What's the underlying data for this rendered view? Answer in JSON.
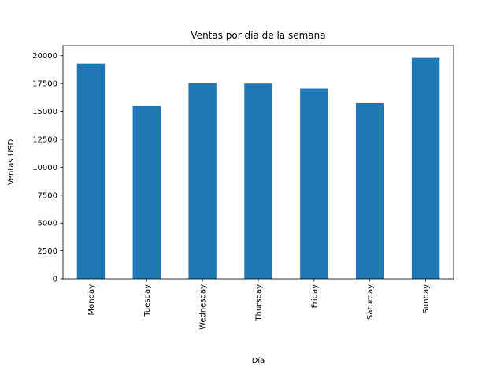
{
  "chart_data": {
    "type": "bar",
    "title": "Ventas por día de la semana",
    "xlabel": "Día",
    "ylabel": "Ventas USD",
    "categories": [
      "Monday",
      "Tuesday",
      "Wednesday",
      "Thursday",
      "Friday",
      "Saturday",
      "Sunday"
    ],
    "values": [
      19300,
      15500,
      17550,
      17500,
      17050,
      15750,
      19800
    ],
    "ylim": [
      0,
      20900
    ],
    "yticks": [
      "0",
      "2500",
      "5000",
      "7500",
      "10000",
      "12500",
      "15000",
      "17500",
      "20000"
    ],
    "ytick_values": [
      0,
      2500,
      5000,
      7500,
      10000,
      12500,
      15000,
      17500,
      20000
    ],
    "bar_color": "#1f77b4",
    "grid": false,
    "legend": "none"
  }
}
